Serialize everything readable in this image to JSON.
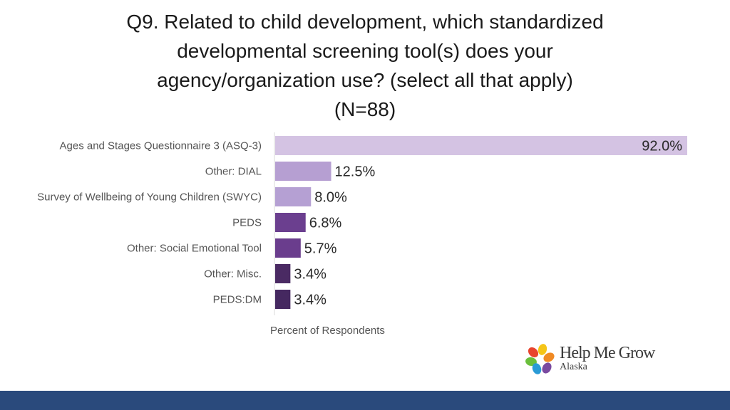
{
  "title_lines": [
    "Q9. Related to child development, which standardized",
    "developmental screening tool(s) does your",
    "agency/organization use? (select all that apply)",
    "(N=88)"
  ],
  "chart_data": {
    "type": "bar",
    "orientation": "horizontal",
    "categories": [
      "Ages and Stages Questionnaire 3 (ASQ-3)",
      "Other: DIAL",
      "Survey of Wellbeing of Young Children (SWYC)",
      "PEDS",
      "Other: Social Emotional Tool",
      "Other: Misc.",
      "PEDS:DM"
    ],
    "values": [
      92.0,
      12.5,
      8.0,
      6.8,
      5.7,
      3.4,
      3.4
    ],
    "value_labels": [
      "92.0%",
      "12.5%",
      "8.0%",
      "6.8%",
      "5.7%",
      "3.4%",
      "3.4%"
    ],
    "bar_colors": [
      "#d4c3e3",
      "#b69fd2",
      "#b5a0d3",
      "#6b3f8f",
      "#6a3d8d",
      "#4a2a63",
      "#452860"
    ],
    "xlabel": "Percent of Respondents",
    "xlim": [
      0,
      92
    ],
    "grid": false
  },
  "logo": {
    "name": "Help Me Grow",
    "sub": "Alaska"
  },
  "colors": {
    "footer_bar": "#2a4a7c",
    "axis_line": "#d9d9d9"
  }
}
